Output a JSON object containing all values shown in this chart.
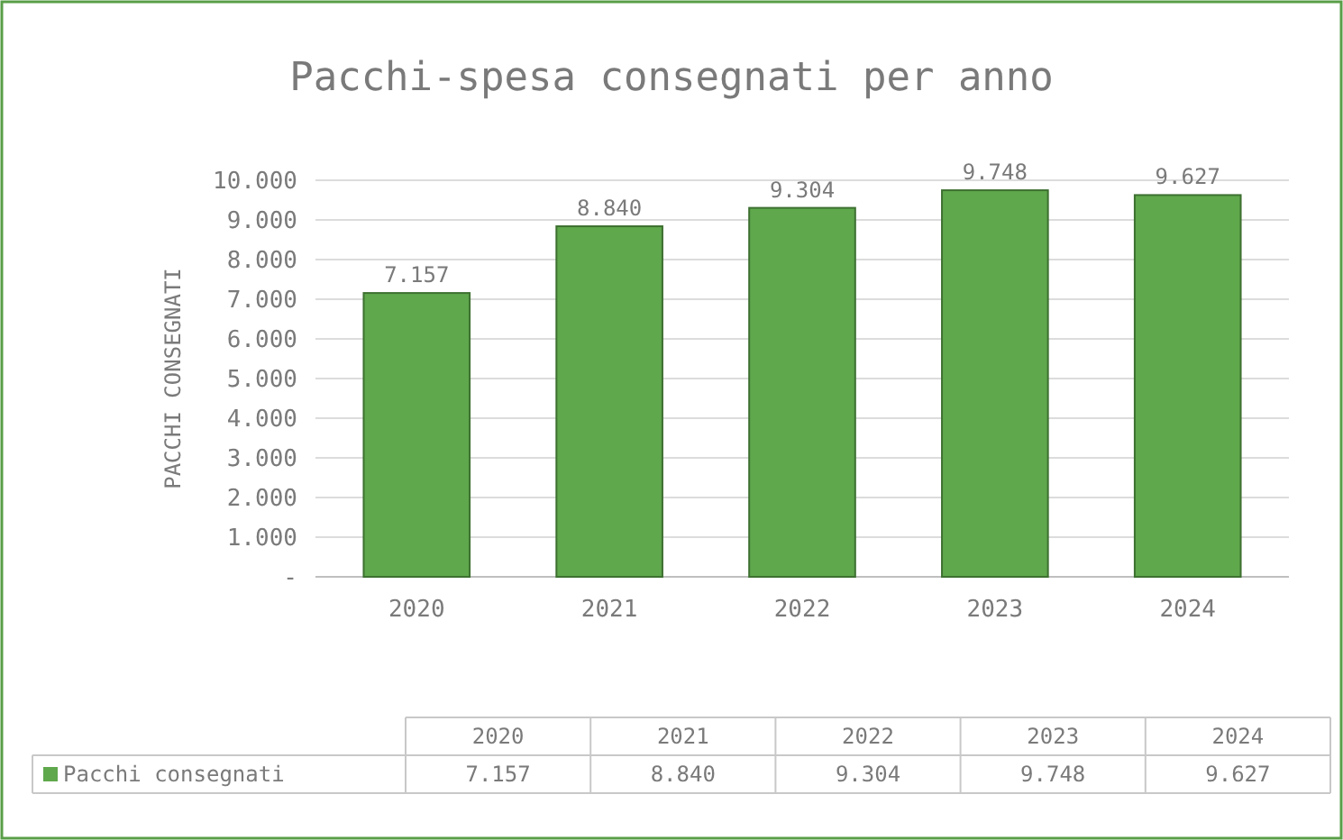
{
  "chart_data": {
    "type": "bar",
    "title": "Pacchi-spesa consegnati per anno",
    "ylabel": "PACCHI CONSEGNATI",
    "categories": [
      "2020",
      "2021",
      "2022",
      "2023",
      "2024"
    ],
    "series": [
      {
        "name": "Pacchi consegnati",
        "color": "#5fa84c",
        "values": [
          7157,
          8840,
          9304,
          9748,
          9627
        ],
        "value_labels": [
          "7.157",
          "8.840",
          "9.304",
          "9.748",
          "9.627"
        ]
      }
    ],
    "ylim": [
      0,
      10000
    ],
    "yticks": [
      {
        "value": 0,
        "label": "-"
      },
      {
        "value": 1000,
        "label": "1.000"
      },
      {
        "value": 2000,
        "label": "2.000"
      },
      {
        "value": 3000,
        "label": "3.000"
      },
      {
        "value": 4000,
        "label": "4.000"
      },
      {
        "value": 5000,
        "label": "5.000"
      },
      {
        "value": 6000,
        "label": "6.000"
      },
      {
        "value": 7000,
        "label": "7.000"
      },
      {
        "value": 8000,
        "label": "8.000"
      },
      {
        "value": 9000,
        "label": "9.000"
      },
      {
        "value": 10000,
        "label": "10.000"
      }
    ],
    "grid": "y",
    "legend": "bottom"
  }
}
